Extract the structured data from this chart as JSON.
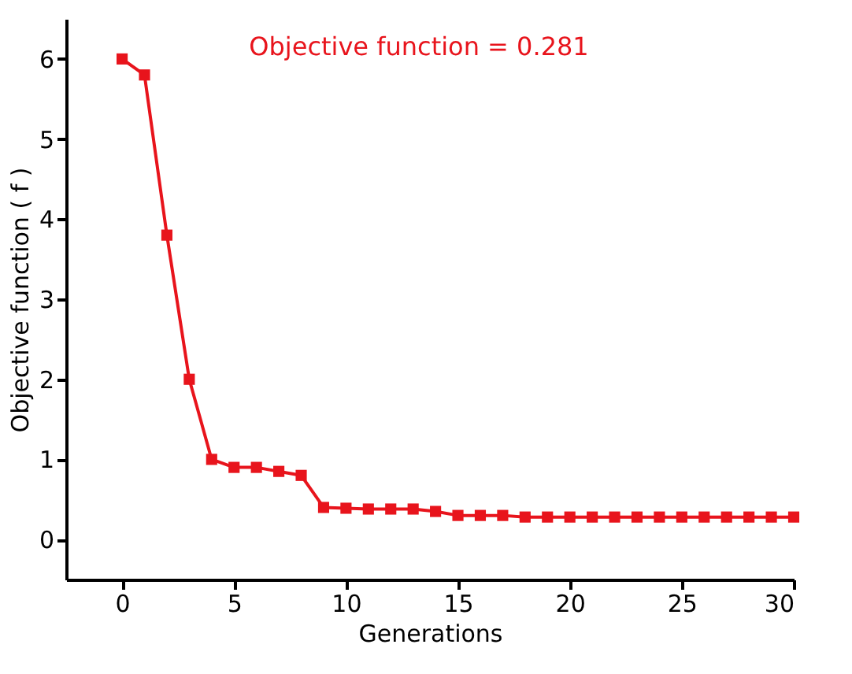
{
  "chart_data": {
    "type": "line",
    "xlabel": "Generations",
    "ylabel": "Objective function ( f )",
    "annotations": [
      "Objective function = 0.281"
    ],
    "x": [
      0,
      1,
      2,
      3,
      4,
      5,
      6,
      7,
      8,
      9,
      10,
      11,
      12,
      13,
      14,
      15,
      16,
      17,
      18,
      19,
      20,
      21,
      22,
      23,
      24,
      25,
      26,
      27,
      28,
      29,
      30
    ],
    "series": [
      {
        "color": "#e8141c",
        "values": [
          6.0,
          5.8,
          3.8,
          2.0,
          1.0,
          0.9,
          0.9,
          0.85,
          0.8,
          0.4,
          0.39,
          0.38,
          0.38,
          0.38,
          0.35,
          0.3,
          0.3,
          0.3,
          0.28,
          0.28,
          0.28,
          0.28,
          0.28,
          0.28,
          0.28,
          0.28,
          0.28,
          0.28,
          0.28,
          0.28,
          0.28
        ]
      }
    ],
    "xlim": [
      -2.5,
      30
    ],
    "ylim": [
      -0.5,
      6.5
    ],
    "xticks": [
      0,
      5,
      10,
      15,
      20,
      25,
      30
    ],
    "yticks": [
      0,
      1,
      2,
      3,
      4,
      5,
      6
    ],
    "grid": false,
    "marker": "square",
    "line_style": "solid",
    "legend": false
  }
}
